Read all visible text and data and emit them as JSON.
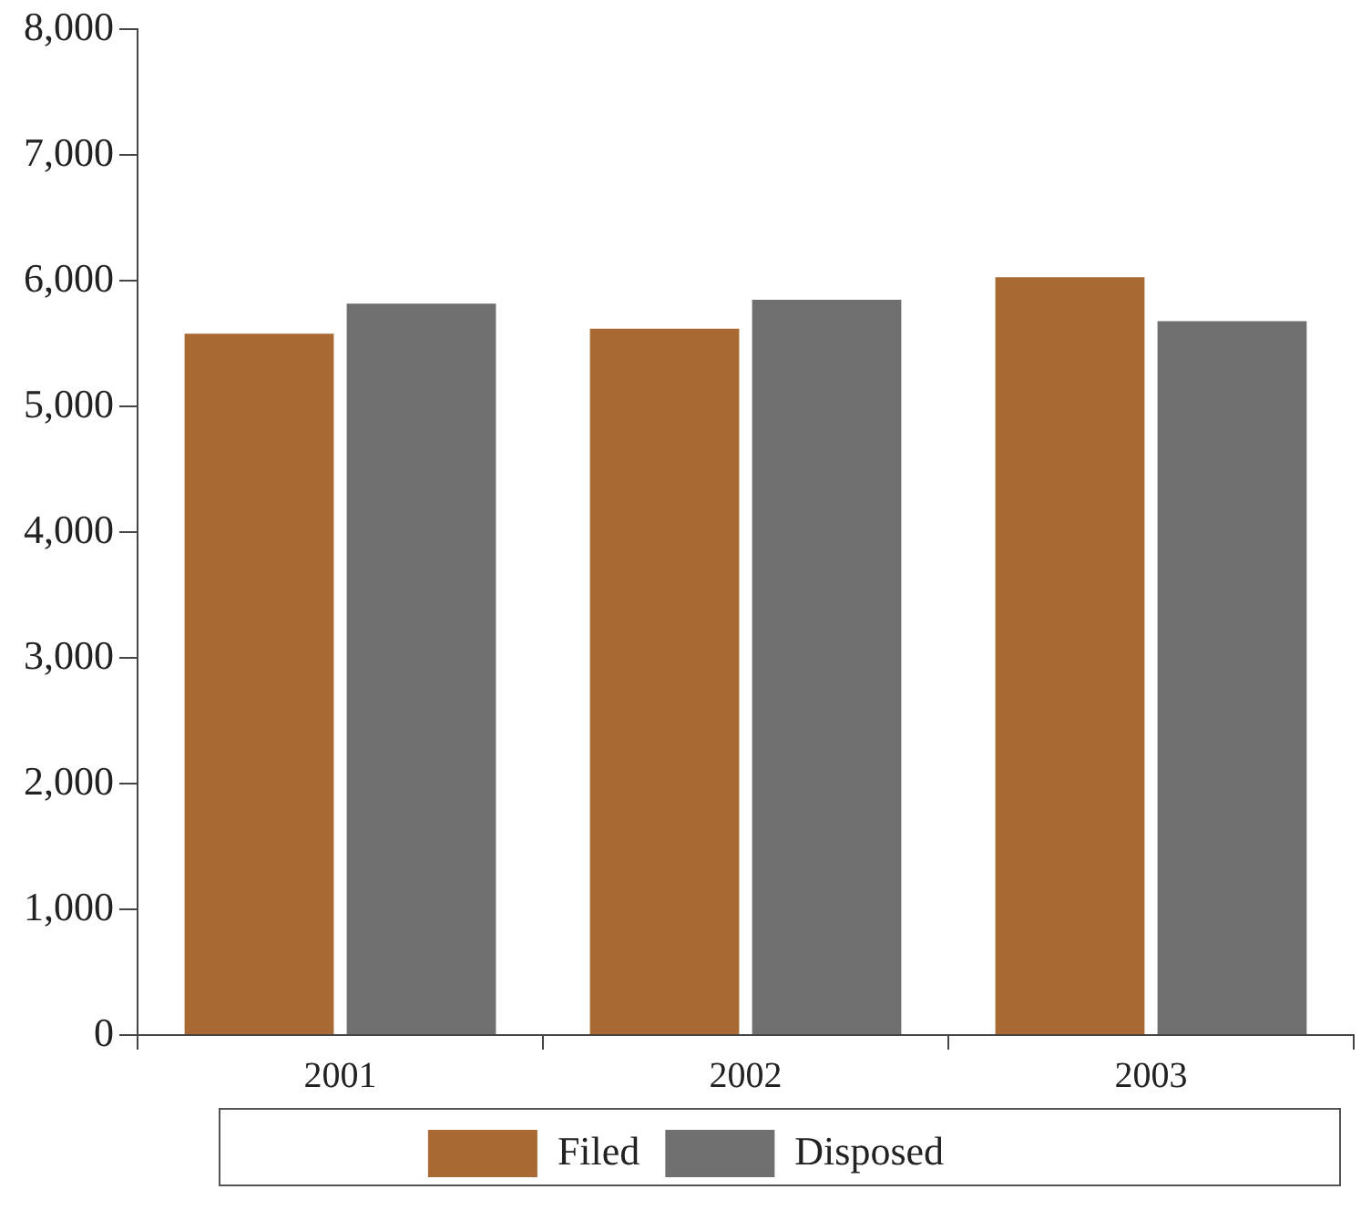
{
  "chart_data": {
    "type": "bar",
    "categories": [
      "2001",
      "2002",
      "2003"
    ],
    "series": [
      {
        "name": "Filed",
        "color": "#a86a32",
        "values": [
          5580,
          5620,
          6030
        ]
      },
      {
        "name": "Disposed",
        "color": "#6f6f6f",
        "values": [
          5820,
          5850,
          5680
        ]
      }
    ],
    "ylim": [
      0,
      8000
    ],
    "yticks": [
      {
        "value": 0,
        "label": "0"
      },
      {
        "value": 1000,
        "label": "1,000"
      },
      {
        "value": 2000,
        "label": "2,000"
      },
      {
        "value": 3000,
        "label": "3,000"
      },
      {
        "value": 4000,
        "label": "4,000"
      },
      {
        "value": 5000,
        "label": "5,000"
      },
      {
        "value": 6000,
        "label": "6,000"
      },
      {
        "value": 7000,
        "label": "7,000"
      },
      {
        "value": 8000,
        "label": "8,000"
      }
    ],
    "grid": false,
    "legend": "bottom"
  }
}
